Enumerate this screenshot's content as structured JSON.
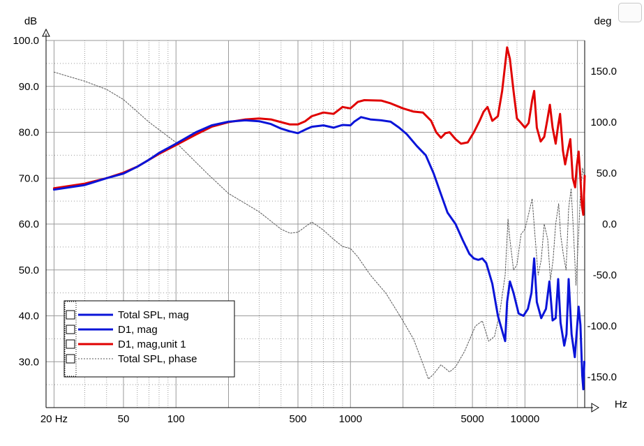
{
  "chart_data": {
    "type": "line",
    "title": "",
    "xlabel": "Hz",
    "ylabel": "dB",
    "y2label": "deg",
    "x_scale": "log",
    "xlim": [
      18,
      22000
    ],
    "ylim": [
      20,
      100
    ],
    "y2lim": [
      -180,
      180
    ],
    "grid": true,
    "legend_position": "bottom-left",
    "x_ticks": [
      {
        "v": 20,
        "label": "20 Hz"
      },
      {
        "v": 50,
        "label": "50"
      },
      {
        "v": 100,
        "label": "100"
      },
      {
        "v": 500,
        "label": "500"
      },
      {
        "v": 1000,
        "label": "1000"
      },
      {
        "v": 5000,
        "label": "5000"
      },
      {
        "v": 10000,
        "label": "10000"
      }
    ],
    "y_ticks": [
      {
        "v": 100,
        "label": "100.0"
      },
      {
        "v": 90,
        "label": "90.0"
      },
      {
        "v": 80,
        "label": "80.0"
      },
      {
        "v": 70,
        "label": "70.0"
      },
      {
        "v": 60,
        "label": "60.0"
      },
      {
        "v": 50,
        "label": "50.0"
      },
      {
        "v": 40,
        "label": "40.0"
      },
      {
        "v": 30,
        "label": "30.0"
      }
    ],
    "y2_ticks": [
      {
        "v": 150,
        "label": "150.0"
      },
      {
        "v": 100,
        "label": "100.0"
      },
      {
        "v": 50,
        "label": "50.0"
      },
      {
        "v": 0,
        "label": "0.0"
      },
      {
        "v": -50,
        "label": "-50.0"
      },
      {
        "v": -100,
        "label": "-100.0"
      },
      {
        "v": -150,
        "label": "-150.0"
      }
    ],
    "series": [
      {
        "name": "Total SPL, mag",
        "color": "#0a14d8",
        "style": "solid",
        "axis": "left",
        "draw": false,
        "points": []
      },
      {
        "name": "D1, mag",
        "color": "#0a14d8",
        "style": "solid",
        "axis": "left",
        "draw": true,
        "points": [
          [
            20,
            67.5
          ],
          [
            30,
            68.5
          ],
          [
            40,
            70
          ],
          [
            50,
            71
          ],
          [
            60,
            72.5
          ],
          [
            70,
            74
          ],
          [
            80,
            75.5
          ],
          [
            100,
            77.5
          ],
          [
            130,
            80
          ],
          [
            160,
            81.5
          ],
          [
            200,
            82.3
          ],
          [
            250,
            82.6
          ],
          [
            300,
            82.4
          ],
          [
            350,
            81.8
          ],
          [
            400,
            80.8
          ],
          [
            450,
            80.2
          ],
          [
            500,
            79.8
          ],
          [
            560,
            80.7
          ],
          [
            600,
            81.2
          ],
          [
            700,
            81.5
          ],
          [
            800,
            81
          ],
          [
            900,
            81.6
          ],
          [
            1000,
            81.5
          ],
          [
            1050,
            82.3
          ],
          [
            1150,
            83.3
          ],
          [
            1300,
            82.8
          ],
          [
            1500,
            82.6
          ],
          [
            1700,
            82.3
          ],
          [
            1900,
            81
          ],
          [
            2100,
            79.6
          ],
          [
            2400,
            77
          ],
          [
            2700,
            75
          ],
          [
            3000,
            71
          ],
          [
            3300,
            66.5
          ],
          [
            3600,
            62.5
          ],
          [
            4000,
            60
          ],
          [
            4400,
            56.5
          ],
          [
            4800,
            53.5
          ],
          [
            5100,
            52.5
          ],
          [
            5400,
            52.2
          ],
          [
            5700,
            52.5
          ],
          [
            6000,
            51.5
          ],
          [
            6500,
            47
          ],
          [
            7000,
            40
          ],
          [
            7500,
            36
          ],
          [
            7700,
            34.5
          ],
          [
            7900,
            43
          ],
          [
            8200,
            47.5
          ],
          [
            8600,
            45
          ],
          [
            9200,
            40.5
          ],
          [
            9800,
            40
          ],
          [
            10400,
            41.5
          ],
          [
            10900,
            45
          ],
          [
            11300,
            52.5
          ],
          [
            11700,
            43
          ],
          [
            12400,
            39.5
          ],
          [
            13200,
            41.5
          ],
          [
            13800,
            47.5
          ],
          [
            14400,
            39
          ],
          [
            15000,
            39.5
          ],
          [
            15500,
            48
          ],
          [
            16000,
            38.5
          ],
          [
            16800,
            33.5
          ],
          [
            17300,
            36
          ],
          [
            17800,
            48
          ],
          [
            18500,
            36
          ],
          [
            19300,
            31
          ],
          [
            19800,
            36.5
          ],
          [
            20300,
            42
          ],
          [
            20800,
            38
          ],
          [
            21300,
            27
          ],
          [
            21600,
            24
          ],
          [
            21900,
            30
          ]
        ]
      },
      {
        "name": "D1, mag,unit 1",
        "color": "#e00000",
        "style": "solid",
        "axis": "left",
        "draw": true,
        "points": [
          [
            20,
            67.8
          ],
          [
            30,
            68.8
          ],
          [
            40,
            70
          ],
          [
            50,
            71.2
          ],
          [
            60,
            72.5
          ],
          [
            70,
            74
          ],
          [
            80,
            75.3
          ],
          [
            100,
            77.2
          ],
          [
            130,
            79.5
          ],
          [
            160,
            81.2
          ],
          [
            200,
            82.2
          ],
          [
            250,
            82.8
          ],
          [
            300,
            83
          ],
          [
            350,
            82.8
          ],
          [
            400,
            82.2
          ],
          [
            450,
            81.7
          ],
          [
            500,
            81.7
          ],
          [
            550,
            82.4
          ],
          [
            600,
            83.5
          ],
          [
            700,
            84.3
          ],
          [
            800,
            84
          ],
          [
            900,
            85.5
          ],
          [
            1000,
            85.2
          ],
          [
            1100,
            86.6
          ],
          [
            1200,
            87
          ],
          [
            1500,
            86.9
          ],
          [
            1700,
            86.3
          ],
          [
            2000,
            85.2
          ],
          [
            2300,
            84.5
          ],
          [
            2600,
            84.3
          ],
          [
            2900,
            82.5
          ],
          [
            3100,
            80
          ],
          [
            3300,
            78.8
          ],
          [
            3500,
            79.8
          ],
          [
            3700,
            80
          ],
          [
            4000,
            78.5
          ],
          [
            4300,
            77.5
          ],
          [
            4700,
            77.8
          ],
          [
            5100,
            80
          ],
          [
            5500,
            82.5
          ],
          [
            5800,
            84.5
          ],
          [
            6100,
            85.5
          ],
          [
            6500,
            82.5
          ],
          [
            7000,
            83.5
          ],
          [
            7400,
            89
          ],
          [
            7900,
            98.5
          ],
          [
            8200,
            96
          ],
          [
            8600,
            89
          ],
          [
            9000,
            83
          ],
          [
            9500,
            82
          ],
          [
            10000,
            81
          ],
          [
            10500,
            82
          ],
          [
            11000,
            87
          ],
          [
            11300,
            89
          ],
          [
            11700,
            81
          ],
          [
            12300,
            78
          ],
          [
            12900,
            79
          ],
          [
            13400,
            82.5
          ],
          [
            13900,
            86
          ],
          [
            14400,
            81
          ],
          [
            15000,
            77.5
          ],
          [
            15500,
            81.5
          ],
          [
            15900,
            84
          ],
          [
            16500,
            76
          ],
          [
            17000,
            73
          ],
          [
            17600,
            76
          ],
          [
            18200,
            78.5
          ],
          [
            18800,
            70
          ],
          [
            19400,
            68
          ],
          [
            19800,
            72.5
          ],
          [
            20300,
            75.8
          ],
          [
            20800,
            70
          ],
          [
            21200,
            64
          ],
          [
            21600,
            62
          ],
          [
            22000,
            70.5
          ]
        ]
      },
      {
        "name": "Total SPL, phase",
        "color": "#555555",
        "style": "dotted",
        "axis": "right",
        "draw": true,
        "points": [
          [
            20,
            149
          ],
          [
            30,
            140
          ],
          [
            40,
            132
          ],
          [
            50,
            122
          ],
          [
            70,
            100
          ],
          [
            100,
            80
          ],
          [
            150,
            50
          ],
          [
            200,
            30
          ],
          [
            300,
            12
          ],
          [
            400,
            -5
          ],
          [
            450,
            -9
          ],
          [
            500,
            -8
          ],
          [
            600,
            2
          ],
          [
            650,
            -2
          ],
          [
            700,
            -6
          ],
          [
            800,
            -15
          ],
          [
            900,
            -22
          ],
          [
            1000,
            -24
          ],
          [
            1100,
            -32
          ],
          [
            1300,
            -50
          ],
          [
            1600,
            -68
          ],
          [
            2000,
            -95
          ],
          [
            2300,
            -113
          ],
          [
            2600,
            -137
          ],
          [
            2800,
            -152
          ],
          [
            3000,
            -147
          ],
          [
            3300,
            -138
          ],
          [
            3700,
            -145
          ],
          [
            4000,
            -140
          ],
          [
            4500,
            -125
          ],
          [
            5200,
            -100
          ],
          [
            5700,
            -95
          ],
          [
            6200,
            -115
          ],
          [
            6700,
            -110
          ],
          [
            7200,
            -85
          ],
          [
            7700,
            -50
          ],
          [
            8000,
            5
          ],
          [
            8200,
            -15
          ],
          [
            8600,
            -45
          ],
          [
            9000,
            -40
          ],
          [
            9500,
            -10
          ],
          [
            10000,
            -5
          ],
          [
            10500,
            10
          ],
          [
            11000,
            25
          ],
          [
            11400,
            -10
          ],
          [
            11900,
            -50
          ],
          [
            12400,
            -35
          ],
          [
            12900,
            0
          ],
          [
            13500,
            -15
          ],
          [
            14000,
            -55
          ],
          [
            14500,
            -35
          ],
          [
            15000,
            0
          ],
          [
            15600,
            20
          ],
          [
            16000,
            -10
          ],
          [
            16600,
            -30
          ],
          [
            17200,
            -45
          ],
          [
            17800,
            15
          ],
          [
            18400,
            35
          ],
          [
            19000,
            -10
          ],
          [
            19600,
            -60
          ],
          [
            20300,
            -10
          ],
          [
            20800,
            30
          ],
          [
            21400,
            55
          ],
          [
            22000,
            45
          ]
        ]
      }
    ]
  },
  "legend": {
    "items": [
      {
        "label": "Total SPL, mag",
        "color": "#0a14d8",
        "style": "solid"
      },
      {
        "label": "D1, mag",
        "color": "#0a14d8",
        "style": "solid"
      },
      {
        "label": "D1, mag,unit 1",
        "color": "#e00000",
        "style": "solid"
      },
      {
        "label": "Total SPL, phase",
        "color": "#555555",
        "style": "dotted"
      }
    ]
  }
}
